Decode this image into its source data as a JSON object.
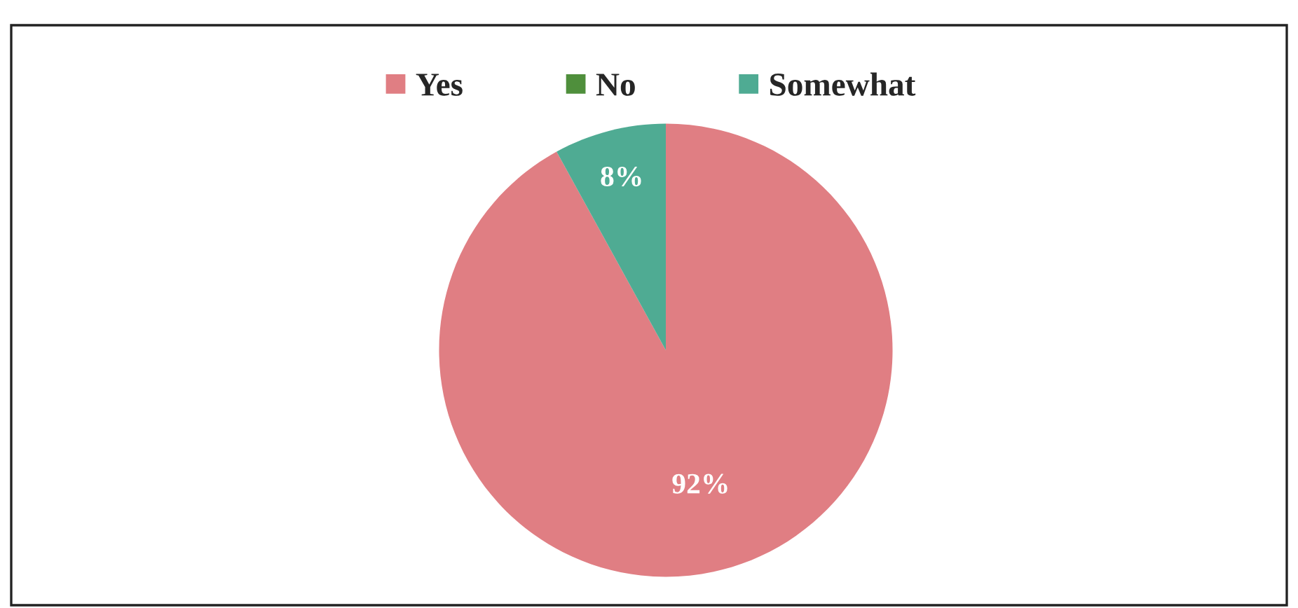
{
  "chart_data": {
    "type": "pie",
    "categories": [
      "Yes",
      "No",
      "Somewhat"
    ],
    "values": [
      92,
      0,
      8
    ],
    "colors": [
      "#e07e83",
      "#4f8f3c",
      "#4fab93"
    ],
    "value_labels": [
      "92%",
      null,
      "8%"
    ],
    "legend": "top"
  }
}
